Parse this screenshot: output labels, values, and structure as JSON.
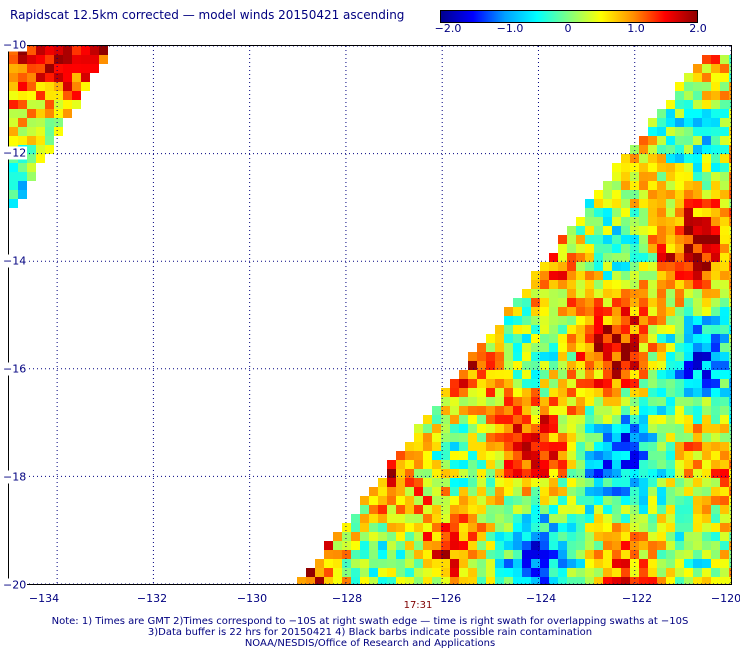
{
  "header": {
    "title": "Rapidscat 12.5km corrected — model winds 20150421 ascending"
  },
  "colorbar": {
    "labels": [
      "−2.0",
      "−1.0",
      "0",
      "1.0",
      "2.0"
    ],
    "stops": [
      "#000090",
      "#0000ff",
      "#00a0ff",
      "#00ffff",
      "#80ff80",
      "#ffff00",
      "#ff9000",
      "#ff0000",
      "#900000"
    ]
  },
  "chart_data": {
    "type": "heatmap",
    "title": "Rapidscat 12.5km corrected — model winds 20150421 ascending",
    "xlim": [
      -135,
      -120
    ],
    "ylim": [
      -20,
      -10
    ],
    "value_range": [
      -2.0,
      2.0
    ],
    "x_ticks": [
      "−134",
      "−132",
      "−130",
      "−128",
      "−126",
      "−124",
      "−122",
      "−120"
    ],
    "y_ticks": [
      "−10",
      "−12",
      "−14",
      "−16",
      "−18",
      "−20"
    ],
    "x_tick_values": [
      -134,
      -132,
      -130,
      -128,
      -126,
      -124,
      -122,
      -120
    ],
    "y_tick_values": [
      -10,
      -12,
      -14,
      -16,
      -18,
      -20
    ],
    "grid": true,
    "swaths": [
      {
        "name": "",
        "region": "northwest corner",
        "lon_range": [
          -135,
          -133
        ],
        "lat_range": [
          -13,
          -10
        ],
        "dominant_values": [
          1.5,
          0.8,
          -0.5,
          -1.5
        ]
      },
      {
        "name": "",
        "region": "southeast triangle",
        "lon_range": [
          -129,
          -120
        ],
        "lat_range": [
          -20,
          -10.2
        ],
        "dominant_values": [
          0.5,
          1.0,
          -0.5,
          -1.5,
          2.0
        ]
      }
    ],
    "time_label": {
      "text": "17:31",
      "lon": -126.5
    }
  },
  "notes": {
    "line1": "Note: 1) Times are GMT 2)Times correspond to −10S at right swath edge — time is right swath for overlapping swaths at −10S",
    "line2": "3)Data buffer is 22 hrs for 20150421 4) Black barbs indicate possible rain contamination",
    "line3": "NOAA/NESDIS/Office of Research and Applications"
  }
}
